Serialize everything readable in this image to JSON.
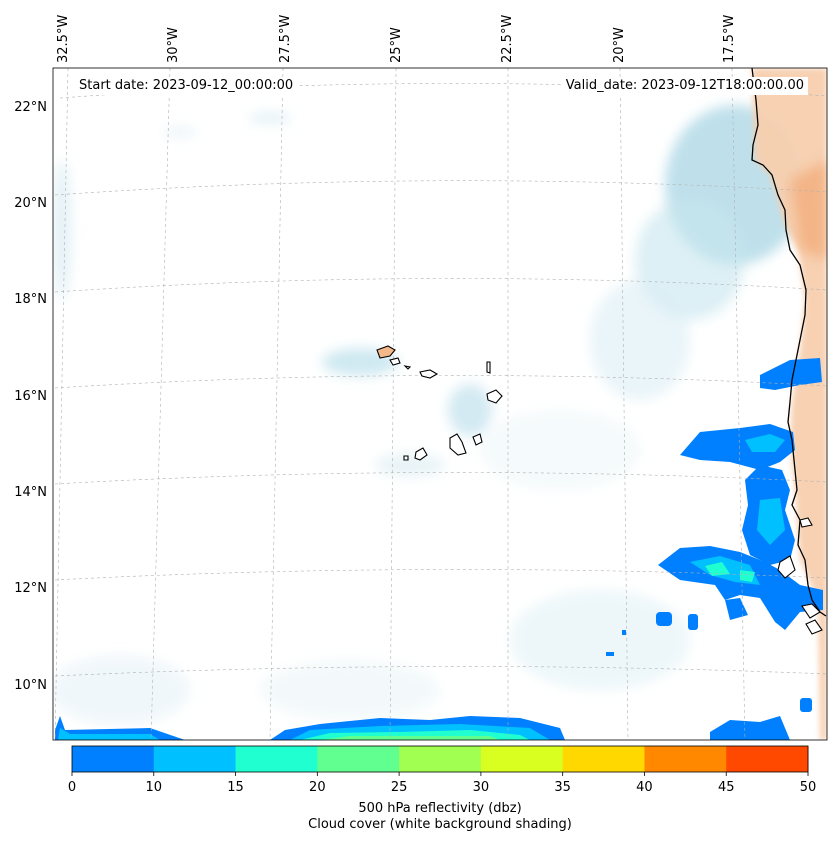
{
  "map": {
    "start_date_text": "Start date: 2023-09-12_00:00:00",
    "valid_date_text": "Valid_date: 2023-09-12T18:00:00.00",
    "lon_labels": [
      "32.5°W",
      "30°W",
      "27.5°W",
      "25°W",
      "22.5°W",
      "20°W",
      "17.5°W"
    ],
    "lat_labels": [
      "22°N",
      "20°N",
      "18°N",
      "16°N",
      "14°N",
      "12°N",
      "10°N"
    ],
    "colors": {
      "land_edge": "#000000",
      "cloud": "#add8e6",
      "warm_land": "#f4b98a"
    }
  },
  "colorbar": {
    "ticks": [
      "0",
      "10",
      "15",
      "20",
      "25",
      "30",
      "35",
      "40",
      "45",
      "50"
    ],
    "colors": [
      "#0080ff",
      "#00c0ff",
      "#20ffd0",
      "#60ff90",
      "#a0ff50",
      "#d8ff20",
      "#ffd800",
      "#ff8800",
      "#ff4800"
    ],
    "label_line1": "500 hPa reflectivity (dbz)",
    "label_line2": "Cloud cover (white background shading)"
  }
}
